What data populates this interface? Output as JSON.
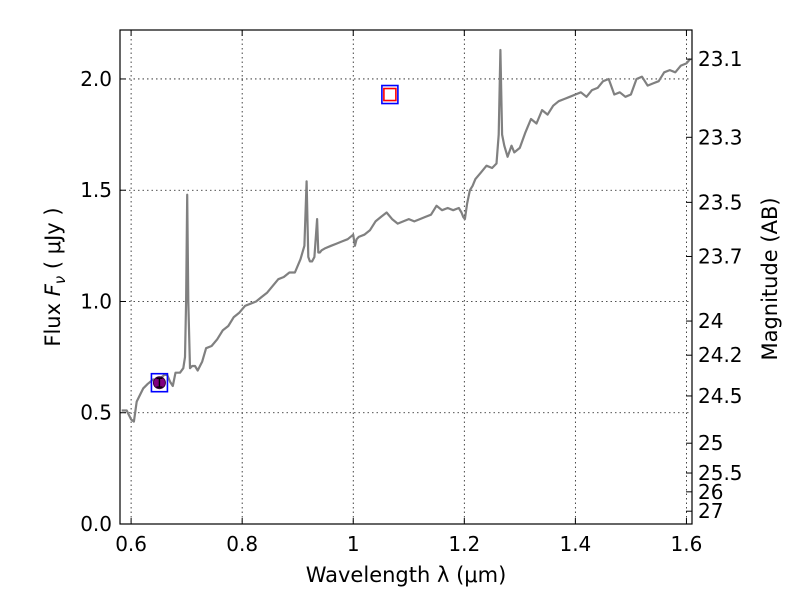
{
  "chart_data": {
    "type": "line",
    "title": "",
    "xlabel": "Wavelength  λ (μm)",
    "ylabel": "Flux  F_ν  ( μJy )",
    "ylabel_parts": {
      "prefix": "Flux  ",
      "symbol": "F",
      "subscript": "ν",
      "unit": "  ( μJy )"
    },
    "y2label": "Magnitude (AB)",
    "xlim": [
      0.58,
      1.61
    ],
    "ylim": [
      0.0,
      2.22
    ],
    "grid": true,
    "x_ticks": [
      {
        "value": 0.6,
        "label": "0.6"
      },
      {
        "value": 0.8,
        "label": "0.8"
      },
      {
        "value": 1.0,
        "label": "1"
      },
      {
        "value": 1.2,
        "label": "1.2"
      },
      {
        "value": 1.4,
        "label": "1.4"
      },
      {
        "value": 1.6,
        "label": "1.6"
      }
    ],
    "y_ticks": [
      {
        "value": 0.0,
        "label": "0.0"
      },
      {
        "value": 0.5,
        "label": "0.5"
      },
      {
        "value": 1.0,
        "label": "1.0"
      },
      {
        "value": 1.5,
        "label": "1.5"
      },
      {
        "value": 2.0,
        "label": "2.0"
      }
    ],
    "y2_ticks": [
      {
        "mag": 23.1,
        "label": "23.1"
      },
      {
        "mag": 23.3,
        "label": "23.3"
      },
      {
        "mag": 23.5,
        "label": "23.5"
      },
      {
        "mag": 23.7,
        "label": "23.7"
      },
      {
        "mag": 24.0,
        "label": "24"
      },
      {
        "mag": 24.2,
        "label": "24.2"
      },
      {
        "mag": 24.5,
        "label": "24.5"
      },
      {
        "mag": 25.0,
        "label": "25"
      },
      {
        "mag": 25.5,
        "label": "25.5"
      },
      {
        "mag": 26.0,
        "label": "26"
      },
      {
        "mag": 27.0,
        "label": "27"
      }
    ],
    "series": [
      {
        "name": "spectrum",
        "color": "#808080",
        "x": [
          0.583,
          0.592,
          0.6,
          0.605,
          0.61,
          0.616,
          0.622,
          0.63,
          0.64,
          0.648,
          0.655,
          0.66,
          0.665,
          0.67,
          0.675,
          0.68,
          0.688,
          0.694,
          0.697,
          0.699,
          0.701,
          0.703,
          0.706,
          0.71,
          0.715,
          0.72,
          0.728,
          0.735,
          0.745,
          0.755,
          0.765,
          0.775,
          0.785,
          0.795,
          0.805,
          0.815,
          0.825,
          0.835,
          0.845,
          0.855,
          0.865,
          0.875,
          0.885,
          0.895,
          0.905,
          0.912,
          0.916,
          0.919,
          0.922,
          0.926,
          0.93,
          0.935,
          0.937,
          0.94,
          0.943,
          0.95,
          0.96,
          0.97,
          0.98,
          0.99,
          1.0,
          1.003,
          1.006,
          1.01,
          1.02,
          1.03,
          1.04,
          1.05,
          1.06,
          1.07,
          1.08,
          1.09,
          1.1,
          1.11,
          1.12,
          1.13,
          1.14,
          1.15,
          1.16,
          1.17,
          1.18,
          1.19,
          1.195,
          1.198,
          1.201,
          1.205,
          1.21,
          1.215,
          1.22,
          1.23,
          1.24,
          1.25,
          1.258,
          1.262,
          1.265,
          1.268,
          1.272,
          1.278,
          1.285,
          1.29,
          1.3,
          1.31,
          1.32,
          1.33,
          1.34,
          1.35,
          1.36,
          1.37,
          1.38,
          1.39,
          1.4,
          1.41,
          1.42,
          1.43,
          1.44,
          1.45,
          1.46,
          1.47,
          1.48,
          1.49,
          1.5,
          1.51,
          1.52,
          1.53,
          1.54,
          1.55,
          1.56,
          1.57,
          1.58,
          1.59,
          1.6,
          1.607
        ],
        "y": [
          0.51,
          0.51,
          0.47,
          0.46,
          0.55,
          0.58,
          0.61,
          0.63,
          0.65,
          0.64,
          0.66,
          0.67,
          0.67,
          0.64,
          0.62,
          0.68,
          0.68,
          0.7,
          0.75,
          1.0,
          1.48,
          1.0,
          0.7,
          0.71,
          0.71,
          0.69,
          0.73,
          0.79,
          0.8,
          0.83,
          0.87,
          0.89,
          0.93,
          0.95,
          0.98,
          0.99,
          1.0,
          1.02,
          1.04,
          1.07,
          1.1,
          1.11,
          1.13,
          1.13,
          1.19,
          1.25,
          1.54,
          1.2,
          1.18,
          1.18,
          1.2,
          1.37,
          1.22,
          1.22,
          1.23,
          1.24,
          1.25,
          1.26,
          1.27,
          1.28,
          1.3,
          1.25,
          1.28,
          1.29,
          1.3,
          1.32,
          1.36,
          1.38,
          1.4,
          1.37,
          1.35,
          1.36,
          1.37,
          1.36,
          1.37,
          1.38,
          1.39,
          1.43,
          1.41,
          1.42,
          1.41,
          1.42,
          1.4,
          1.38,
          1.37,
          1.44,
          1.5,
          1.52,
          1.55,
          1.58,
          1.61,
          1.6,
          1.62,
          1.75,
          2.13,
          1.75,
          1.7,
          1.65,
          1.7,
          1.67,
          1.69,
          1.76,
          1.82,
          1.8,
          1.86,
          1.84,
          1.88,
          1.9,
          1.91,
          1.92,
          1.93,
          1.94,
          1.92,
          1.95,
          1.96,
          1.99,
          2.0,
          1.93,
          1.94,
          1.92,
          1.93,
          2.0,
          2.01,
          1.97,
          1.98,
          1.99,
          2.03,
          2.04,
          2.03,
          2.06,
          2.07,
          2.09
        ]
      }
    ],
    "markers": [
      {
        "name": "photometry-point-r",
        "x": 0.651,
        "y": 0.635,
        "yerr": 0.02,
        "style": "filled-circle-with-box",
        "fill": "#800080",
        "box_color": "#0000ff"
      },
      {
        "name": "model-point-j",
        "x": 1.066,
        "y": 1.93,
        "style": "red-square-in-blue-box",
        "fill": "#ff0000",
        "box_color": "#0000ff"
      }
    ]
  }
}
